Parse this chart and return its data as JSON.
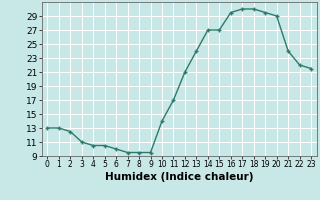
{
  "x": [
    0,
    1,
    2,
    3,
    4,
    5,
    6,
    7,
    8,
    9,
    10,
    11,
    12,
    13,
    14,
    15,
    16,
    17,
    18,
    19,
    20,
    21,
    22,
    23
  ],
  "y": [
    13,
    13,
    12.5,
    11,
    10.5,
    10.5,
    10,
    9.5,
    9.5,
    9.5,
    14,
    17,
    21,
    24,
    27,
    27,
    29.5,
    30,
    30,
    29.5,
    29,
    24,
    22,
    21.5
  ],
  "line_color": "#2d7a6a",
  "marker": "+",
  "bg_color": "#c8e8e8",
  "grid_color": "#ffffff",
  "xlabel": "Humidex (Indice chaleur)",
  "ylim": [
    9,
    31
  ],
  "xlim": [
    -0.5,
    23.5
  ],
  "yticks": [
    9,
    11,
    13,
    15,
    17,
    19,
    21,
    23,
    25,
    27,
    29
  ],
  "xticks": [
    0,
    1,
    2,
    3,
    4,
    5,
    6,
    7,
    8,
    9,
    10,
    11,
    12,
    13,
    14,
    15,
    16,
    17,
    18,
    19,
    20,
    21,
    22,
    23
  ],
  "xlabel_fontsize": 7.5,
  "ytick_fontsize": 6.5,
  "xtick_fontsize": 5.5,
  "linewidth": 1.0,
  "markersize": 3.5,
  "markeredgewidth": 1.0
}
